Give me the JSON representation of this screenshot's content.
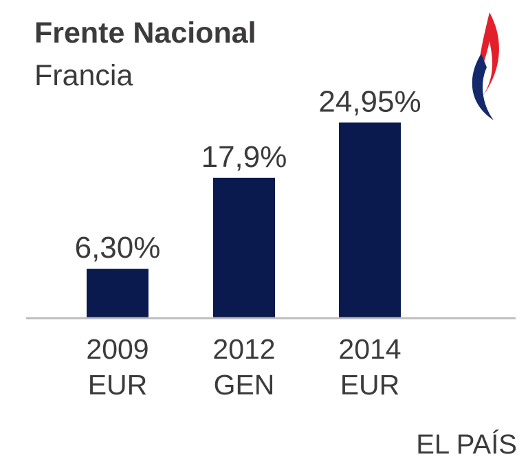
{
  "chart_data": {
    "type": "bar",
    "title": "Frente Nacional",
    "subtitle": "Francia",
    "categories": [
      {
        "year": "2009",
        "election": "EUR"
      },
      {
        "year": "2012",
        "election": "GEN"
      },
      {
        "year": "2014",
        "election": "EUR"
      }
    ],
    "values": [
      6.3,
      17.9,
      24.95
    ],
    "value_labels": [
      "6,30%",
      "17,9%",
      "24,95%"
    ],
    "xlabel": "",
    "ylabel": "",
    "ylim": [
      0,
      27
    ],
    "grid": false,
    "bar_color": "#0b1a4e",
    "baseline_color": "#bdbdbd"
  },
  "logo": {
    "name": "flame-logo-icon",
    "colors": {
      "red": "#e2202b",
      "blue": "#13296b"
    }
  },
  "source": "EL PAÍS"
}
